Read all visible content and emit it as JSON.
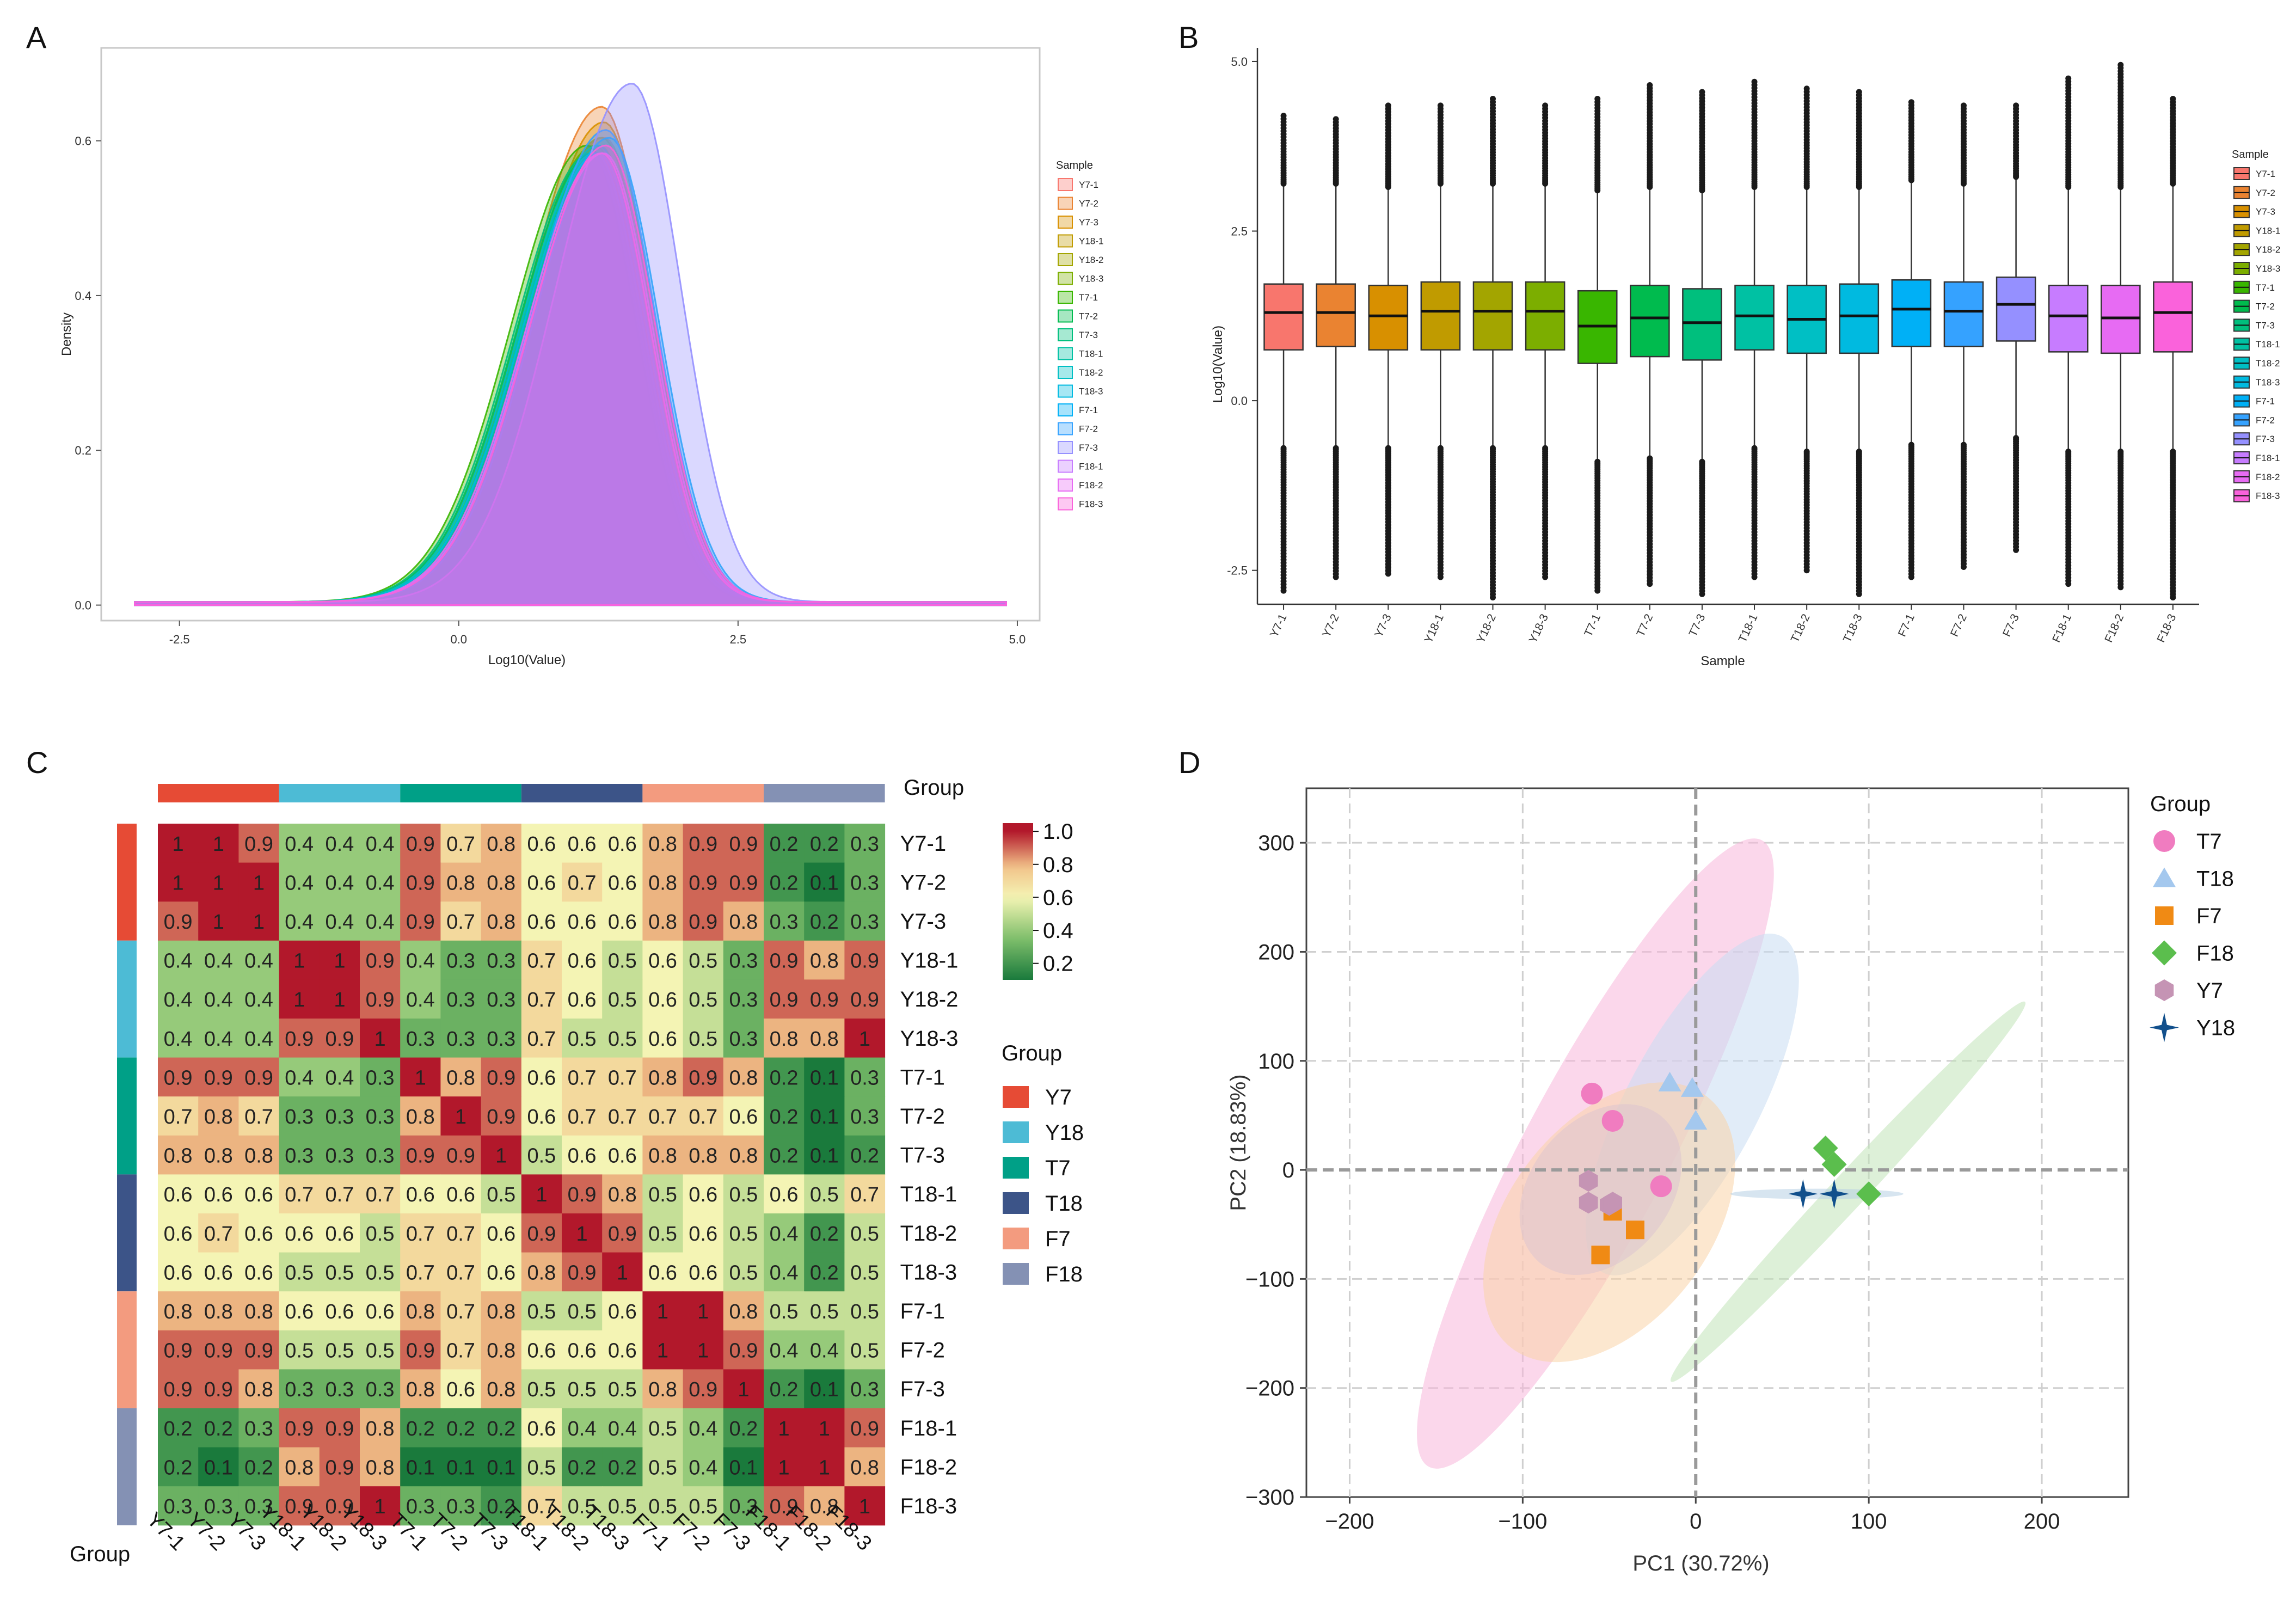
{
  "panel_labels": [
    "A",
    "B",
    "C",
    "D"
  ],
  "samples": [
    "Y7-1",
    "Y7-2",
    "Y7-3",
    "Y18-1",
    "Y18-2",
    "Y18-3",
    "T7-1",
    "T7-2",
    "T7-3",
    "T18-1",
    "T18-2",
    "T18-3",
    "F7-1",
    "F7-2",
    "F7-3",
    "F18-1",
    "F18-2",
    "F18-3"
  ],
  "sample_colors": [
    "#F8766D",
    "#EA8331",
    "#D89000",
    "#C09B00",
    "#A3A500",
    "#7CAE00",
    "#39B600",
    "#00BB4E",
    "#00BF7D",
    "#00C1A3",
    "#00BFC4",
    "#00BAE0",
    "#00B0F6",
    "#35A2FF",
    "#9590FF",
    "#C77CFF",
    "#E76BF3",
    "#FA62DB"
  ],
  "chart_data": [
    {
      "id": "A",
      "type": "area",
      "xlabel": "Log10(Value)",
      "ylabel": "Density",
      "xlim": [
        -3.2,
        5.2
      ],
      "ylim": [
        -0.02,
        0.72
      ],
      "xticks": [
        -2.5,
        0.0,
        2.5,
        5.0
      ],
      "xtick_labels": [
        "-2.5",
        "0.0",
        "2.5",
        "5.0"
      ],
      "yticks": [
        0.0,
        0.2,
        0.4,
        0.6
      ],
      "ytick_labels": [
        "0.0",
        "0.2",
        "0.4",
        "0.6"
      ],
      "legend_title": "Sample",
      "x_range": [
        -2.9,
        4.9
      ],
      "series_params": [
        {
          "name": "Y7-1",
          "peak_x": 1.3,
          "peak_y": 0.6
        },
        {
          "name": "Y7-2",
          "peak_x": 1.28,
          "peak_y": 0.64
        },
        {
          "name": "Y7-3",
          "peak_x": 1.3,
          "peak_y": 0.62
        },
        {
          "name": "Y18-1",
          "peak_x": 1.28,
          "peak_y": 0.6
        },
        {
          "name": "Y18-2",
          "peak_x": 1.26,
          "peak_y": 0.59
        },
        {
          "name": "Y18-3",
          "peak_x": 1.22,
          "peak_y": 0.59
        },
        {
          "name": "T7-1",
          "peak_x": 1.15,
          "peak_y": 0.59
        },
        {
          "name": "T7-2",
          "peak_x": 1.2,
          "peak_y": 0.58
        },
        {
          "name": "T7-3",
          "peak_x": 1.18,
          "peak_y": 0.58
        },
        {
          "name": "T18-1",
          "peak_x": 1.25,
          "peak_y": 0.59
        },
        {
          "name": "T18-2",
          "peak_x": 1.22,
          "peak_y": 0.58
        },
        {
          "name": "T18-3",
          "peak_x": 1.25,
          "peak_y": 0.58
        },
        {
          "name": "F7-1",
          "peak_x": 1.35,
          "peak_y": 0.6
        },
        {
          "name": "F7-2",
          "peak_x": 1.32,
          "peak_y": 0.61
        },
        {
          "name": "F7-3",
          "peak_x": 1.55,
          "peak_y": 0.67
        },
        {
          "name": "F18-1",
          "peak_x": 1.3,
          "peak_y": 0.58
        },
        {
          "name": "F18-2",
          "peak_x": 1.28,
          "peak_y": 0.58
        },
        {
          "name": "F18-3",
          "peak_x": 1.32,
          "peak_y": 0.59
        }
      ]
    },
    {
      "id": "B",
      "type": "box",
      "xlabel": "Sample",
      "ylabel": "Log10(Value)",
      "ylim": [
        -3.0,
        5.2
      ],
      "yticks": [
        -2.5,
        0.0,
        2.5,
        5.0
      ],
      "ytick_labels": [
        "-2.5",
        "0.0",
        "2.5",
        "5.0"
      ],
      "legend_title": "Sample",
      "boxes": [
        {
          "name": "Y7-1",
          "q1": 0.75,
          "median": 1.3,
          "q3": 1.72,
          "whisker_low": -0.7,
          "whisker_high": 3.2,
          "out_low": -2.8,
          "out_high": 4.2
        },
        {
          "name": "Y7-2",
          "q1": 0.8,
          "median": 1.3,
          "q3": 1.72,
          "whisker_low": -0.7,
          "whisker_high": 3.2,
          "out_low": -2.6,
          "out_high": 4.15
        },
        {
          "name": "Y7-3",
          "q1": 0.75,
          "median": 1.25,
          "q3": 1.7,
          "whisker_low": -0.7,
          "whisker_high": 3.15,
          "out_low": -2.55,
          "out_high": 4.35
        },
        {
          "name": "Y18-1",
          "q1": 0.75,
          "median": 1.32,
          "q3": 1.75,
          "whisker_low": -0.7,
          "whisker_high": 3.2,
          "out_low": -2.6,
          "out_high": 4.35
        },
        {
          "name": "Y18-2",
          "q1": 0.75,
          "median": 1.32,
          "q3": 1.75,
          "whisker_low": -0.7,
          "whisker_high": 3.2,
          "out_low": -2.9,
          "out_high": 4.45
        },
        {
          "name": "Y18-3",
          "q1": 0.75,
          "median": 1.32,
          "q3": 1.75,
          "whisker_low": -0.7,
          "whisker_high": 3.2,
          "out_low": -2.6,
          "out_high": 4.35
        },
        {
          "name": "T7-1",
          "q1": 0.55,
          "median": 1.1,
          "q3": 1.62,
          "whisker_low": -0.9,
          "whisker_high": 3.1,
          "out_low": -2.8,
          "out_high": 4.45
        },
        {
          "name": "T7-2",
          "q1": 0.65,
          "median": 1.22,
          "q3": 1.7,
          "whisker_low": -0.85,
          "whisker_high": 3.15,
          "out_low": -2.7,
          "out_high": 4.65
        },
        {
          "name": "T7-3",
          "q1": 0.6,
          "median": 1.15,
          "q3": 1.65,
          "whisker_low": -0.9,
          "whisker_high": 3.1,
          "out_low": -2.85,
          "out_high": 4.55
        },
        {
          "name": "T18-1",
          "q1": 0.75,
          "median": 1.25,
          "q3": 1.7,
          "whisker_low": -0.7,
          "whisker_high": 3.15,
          "out_low": -2.6,
          "out_high": 4.7
        },
        {
          "name": "T18-2",
          "q1": 0.7,
          "median": 1.2,
          "q3": 1.7,
          "whisker_low": -0.75,
          "whisker_high": 3.15,
          "out_low": -2.5,
          "out_high": 4.6
        },
        {
          "name": "T18-3",
          "q1": 0.7,
          "median": 1.25,
          "q3": 1.72,
          "whisker_low": -0.75,
          "whisker_high": 3.15,
          "out_low": -2.85,
          "out_high": 4.55
        },
        {
          "name": "F7-1",
          "q1": 0.8,
          "median": 1.35,
          "q3": 1.78,
          "whisker_low": -0.65,
          "whisker_high": 3.25,
          "out_low": -2.6,
          "out_high": 4.4
        },
        {
          "name": "F7-2",
          "q1": 0.8,
          "median": 1.32,
          "q3": 1.75,
          "whisker_low": -0.65,
          "whisker_high": 3.2,
          "out_low": -2.45,
          "out_high": 4.35
        },
        {
          "name": "F7-3",
          "q1": 0.88,
          "median": 1.42,
          "q3": 1.82,
          "whisker_low": -0.55,
          "whisker_high": 3.3,
          "out_low": -2.2,
          "out_high": 4.35
        },
        {
          "name": "F18-1",
          "q1": 0.72,
          "median": 1.25,
          "q3": 1.7,
          "whisker_low": -0.75,
          "whisker_high": 3.15,
          "out_low": -2.7,
          "out_high": 4.75
        },
        {
          "name": "F18-2",
          "q1": 0.7,
          "median": 1.22,
          "q3": 1.7,
          "whisker_low": -0.75,
          "whisker_high": 3.15,
          "out_low": -2.75,
          "out_high": 4.95
        },
        {
          "name": "F18-3",
          "q1": 0.72,
          "median": 1.3,
          "q3": 1.75,
          "whisker_low": -0.75,
          "whisker_high": 3.2,
          "out_low": -2.9,
          "out_high": 4.45
        }
      ]
    },
    {
      "id": "C",
      "type": "heatmap",
      "group_label": "Group",
      "row_labels": [
        "Y7-1",
        "Y7-2",
        "Y7-3",
        "Y18-1",
        "Y18-2",
        "Y18-3",
        "T7-1",
        "T7-2",
        "T7-3",
        "T18-1",
        "T18-2",
        "T18-3",
        "F7-1",
        "F7-2",
        "F7-3",
        "F18-1",
        "F18-2",
        "F18-3"
      ],
      "col_labels": [
        "Y7-1",
        "Y7-2",
        "Y7-3",
        "Y18-1",
        "Y18-2",
        "Y18-3",
        "T7-1",
        "T7-2",
        "T7-3",
        "T18-1",
        "T18-2",
        "T18-3",
        "F7-1",
        "F7-2",
        "F7-3",
        "F18-1",
        "F18-2",
        "F18-3"
      ],
      "values": [
        [
          1.0,
          1.0,
          0.9,
          0.4,
          0.4,
          0.4,
          0.9,
          0.7,
          0.8,
          0.6,
          0.6,
          0.6,
          0.8,
          0.9,
          0.9,
          0.2,
          0.2,
          0.3
        ],
        [
          1.0,
          1.0,
          1.0,
          0.4,
          0.4,
          0.4,
          0.9,
          0.8,
          0.8,
          0.6,
          0.7,
          0.6,
          0.8,
          0.9,
          0.9,
          0.2,
          0.1,
          0.3
        ],
        [
          0.9,
          1.0,
          1.0,
          0.4,
          0.4,
          0.4,
          0.9,
          0.7,
          0.8,
          0.6,
          0.6,
          0.6,
          0.8,
          0.9,
          0.8,
          0.3,
          0.2,
          0.3
        ],
        [
          0.4,
          0.4,
          0.4,
          1.0,
          1.0,
          0.9,
          0.4,
          0.3,
          0.3,
          0.7,
          0.6,
          0.5,
          0.6,
          0.5,
          0.3,
          0.9,
          0.8,
          0.9
        ],
        [
          0.4,
          0.4,
          0.4,
          1.0,
          1.0,
          0.9,
          0.4,
          0.3,
          0.3,
          0.7,
          0.6,
          0.5,
          0.6,
          0.5,
          0.3,
          0.9,
          0.9,
          0.9
        ],
        [
          0.4,
          0.4,
          0.4,
          0.9,
          0.9,
          1.0,
          0.3,
          0.3,
          0.3,
          0.7,
          0.5,
          0.5,
          0.6,
          0.5,
          0.3,
          0.8,
          0.8,
          1.0
        ],
        [
          0.9,
          0.9,
          0.9,
          0.4,
          0.4,
          0.3,
          1.0,
          0.8,
          0.9,
          0.6,
          0.7,
          0.7,
          0.8,
          0.9,
          0.8,
          0.2,
          0.1,
          0.3
        ],
        [
          0.7,
          0.8,
          0.7,
          0.3,
          0.3,
          0.3,
          0.8,
          1.0,
          0.9,
          0.6,
          0.7,
          0.7,
          0.7,
          0.7,
          0.6,
          0.2,
          0.1,
          0.3
        ],
        [
          0.8,
          0.8,
          0.8,
          0.3,
          0.3,
          0.3,
          0.9,
          0.9,
          1.0,
          0.5,
          0.6,
          0.6,
          0.8,
          0.8,
          0.8,
          0.2,
          0.1,
          0.2
        ],
        [
          0.6,
          0.6,
          0.6,
          0.7,
          0.7,
          0.7,
          0.6,
          0.6,
          0.5,
          1.0,
          0.9,
          0.8,
          0.5,
          0.6,
          0.5,
          0.6,
          0.5,
          0.7
        ],
        [
          0.6,
          0.7,
          0.6,
          0.6,
          0.6,
          0.5,
          0.7,
          0.7,
          0.6,
          0.9,
          1.0,
          0.9,
          0.5,
          0.6,
          0.5,
          0.4,
          0.2,
          0.5
        ],
        [
          0.6,
          0.6,
          0.6,
          0.5,
          0.5,
          0.5,
          0.7,
          0.7,
          0.6,
          0.8,
          0.9,
          1.0,
          0.6,
          0.6,
          0.5,
          0.4,
          0.2,
          0.5
        ],
        [
          0.8,
          0.8,
          0.8,
          0.6,
          0.6,
          0.6,
          0.8,
          0.7,
          0.8,
          0.5,
          0.5,
          0.6,
          1.0,
          1.0,
          0.8,
          0.5,
          0.5,
          0.5
        ],
        [
          0.9,
          0.9,
          0.9,
          0.5,
          0.5,
          0.5,
          0.9,
          0.7,
          0.8,
          0.6,
          0.6,
          0.6,
          1.0,
          1.0,
          0.9,
          0.4,
          0.4,
          0.5
        ],
        [
          0.9,
          0.9,
          0.8,
          0.3,
          0.3,
          0.3,
          0.8,
          0.6,
          0.8,
          0.5,
          0.5,
          0.5,
          0.8,
          0.9,
          1.0,
          0.2,
          0.1,
          0.3
        ],
        [
          0.2,
          0.2,
          0.3,
          0.9,
          0.9,
          0.8,
          0.2,
          0.2,
          0.2,
          0.6,
          0.4,
          0.4,
          0.5,
          0.4,
          0.2,
          1.0,
          1.0,
          0.9
        ],
        [
          0.2,
          0.1,
          0.2,
          0.8,
          0.9,
          0.8,
          0.1,
          0.1,
          0.1,
          0.5,
          0.2,
          0.2,
          0.5,
          0.4,
          0.1,
          1.0,
          1.0,
          0.8
        ],
        [
          0.3,
          0.3,
          0.3,
          0.9,
          0.9,
          1.0,
          0.3,
          0.3,
          0.2,
          0.7,
          0.5,
          0.5,
          0.5,
          0.5,
          0.3,
          0.9,
          0.8,
          1.0
        ]
      ],
      "colorbar_ticks": [
        "1.0",
        "0.8",
        "0.6",
        "0.4",
        "0.2"
      ],
      "colorbar_tick_values": [
        1.0,
        0.8,
        0.6,
        0.4,
        0.2
      ],
      "color_scale": [
        "#1A7A3C",
        "#7FBF6B",
        "#F4F4B4",
        "#F2C48A",
        "#B2182B"
      ],
      "groups": [
        {
          "name": "Y7",
          "color": "#E64B35"
        },
        {
          "name": "Y18",
          "color": "#4DBBD5"
        },
        {
          "name": "T7",
          "color": "#00A087"
        },
        {
          "name": "T18",
          "color": "#3C5488"
        },
        {
          "name": "F7",
          "color": "#F39B7F"
        },
        {
          "name": "F18",
          "color": "#8491B4"
        }
      ],
      "legend_title": "Group"
    },
    {
      "id": "D",
      "type": "scatter",
      "xlabel": "PC1 (30.72%)",
      "ylabel": "PC2 (18.83%)",
      "xlim": [
        -225,
        250
      ],
      "ylim": [
        -300,
        350
      ],
      "xticks": [
        -200,
        -100,
        0,
        100,
        200
      ],
      "xtick_labels": [
        "−200",
        "−100",
        "0",
        "100",
        "200"
      ],
      "yticks": [
        -300,
        -200,
        -100,
        0,
        100,
        200,
        300
      ],
      "ytick_labels": [
        "−300",
        "−200",
        "−100",
        "0",
        "100",
        "200",
        "300"
      ],
      "legend_title": "Group",
      "series": [
        {
          "name": "T7",
          "color": "#F07CC0",
          "shape": "circle",
          "points": [
            [
              -60,
              70
            ],
            [
              -48,
              45
            ],
            [
              -20,
              -15
            ]
          ],
          "ellipse": {
            "cx": -58,
            "cy": 15,
            "rx": 205,
            "ry": 42,
            "angle": -62,
            "fill": "#F7B6DA"
          }
        },
        {
          "name": "T18",
          "color": "#A4C8EE",
          "shape": "triangle",
          "points": [
            [
              -15,
              80
            ],
            [
              -2,
              75
            ],
            [
              0,
              45
            ]
          ],
          "ellipse": {
            "cx": -2,
            "cy": 60,
            "rx": 110,
            "ry": 38,
            "angle": -62,
            "fill": "#C9DDF2"
          }
        },
        {
          "name": "F7",
          "color": "#F08A14",
          "shape": "square",
          "points": [
            [
              -48,
              -38
            ],
            [
              -35,
              -55
            ],
            [
              -55,
              -78
            ]
          ],
          "ellipse": {
            "cx": -50,
            "cy": -48,
            "rx": 92,
            "ry": 58,
            "angle": -52,
            "fill": "#F9D3A7"
          }
        },
        {
          "name": "F18",
          "color": "#5BBE4D",
          "shape": "diamond",
          "points": [
            [
              75,
              20
            ],
            [
              80,
              5
            ],
            [
              100,
              -22
            ]
          ],
          "ellipse": {
            "cx": 88,
            "cy": -20,
            "rx": 150,
            "ry": 10,
            "angle": -47,
            "fill": "#C1E3B8"
          }
        },
        {
          "name": "Y7",
          "color": "#C594B4",
          "shape": "hexagon",
          "points": [
            [
              -62,
              -10
            ],
            [
              -62,
              -30
            ],
            [
              -50,
              -32
            ],
            [
              -48,
              -30
            ]
          ],
          "ellipse": {
            "cx": -55,
            "cy": -18,
            "rx": 55,
            "ry": 40,
            "angle": -50,
            "fill": "#DDC4CF"
          }
        },
        {
          "name": "Y18",
          "color": "#12508C",
          "shape": "star",
          "points": [
            [
              62,
              -22
            ],
            [
              80,
              -22
            ],
            [
              80,
              -22
            ]
          ],
          "ellipse": {
            "cx": 70,
            "cy": -22,
            "rx": 50,
            "ry": 3,
            "angle": 0,
            "fill": "#B7CFE3"
          }
        }
      ]
    }
  ]
}
